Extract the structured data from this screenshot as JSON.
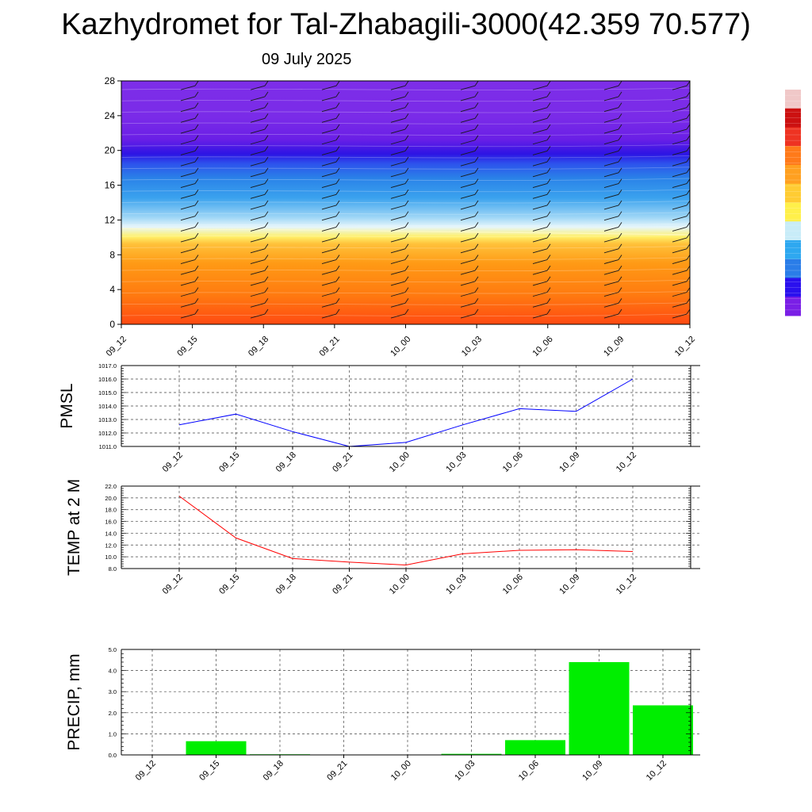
{
  "title": "Kazhydromet for Tal-Zhabagili-3000(42.359 70.577)",
  "date": "09 July 2025",
  "colors": {
    "pmsl_line": "#0000ff",
    "temp_line": "#ff0000",
    "precip_bar": "#00ee00",
    "colorbar": [
      "#7a1fe6",
      "#2a10ee",
      "#2a7de8",
      "#2ea8f0",
      "#c8ecf8",
      "#fff04a",
      "#ffcc33",
      "#ffa020",
      "#ff7a1a",
      "#ee3322",
      "#cc1111",
      "#f0c8c8"
    ]
  },
  "chart_data": [
    {
      "id": "cross-section",
      "type": "heatmap",
      "categories": [
        "09_12",
        "09_15",
        "09_18",
        "09_21",
        "10_00",
        "10_03",
        "10_06",
        "10_09",
        "10_12"
      ],
      "yticks": [
        0,
        4,
        8,
        12,
        16,
        20,
        24,
        28
      ],
      "ylim": [
        0,
        28
      ],
      "xlabel": "",
      "ylabel": "",
      "colorbar": "vertical, right side, unlabeled",
      "freezing_level_approx": [
        11.0,
        10.9,
        10.9,
        10.8,
        10.7,
        10.6,
        10.5,
        10.4,
        10.3
      ],
      "wind_barbs": true
    },
    {
      "id": "pmsl",
      "type": "line",
      "categories": [
        "09_12",
        "09_15",
        "09_18",
        "09_21",
        "10_00",
        "10_03",
        "10_06",
        "10_09",
        "10_12"
      ],
      "ylabel": "PMSL",
      "ylim": [
        1011.0,
        1017.0
      ],
      "yticks": [
        "1011.0",
        "1012.0",
        "1013.0",
        "1014.0",
        "1015.0",
        "1016.0",
        "1017.0"
      ],
      "series": [
        {
          "values": [
            1012.6,
            1013.4,
            1012.1,
            1011.0,
            1011.3,
            1012.6,
            1013.8,
            1013.6,
            1016.0
          ]
        }
      ],
      "grid": true
    },
    {
      "id": "temp",
      "type": "line",
      "categories": [
        "09_12",
        "09_15",
        "09_18",
        "09_21",
        "10_00",
        "10_03",
        "10_06",
        "10_09",
        "10_12"
      ],
      "ylabel": "TEMP at 2 M",
      "ylim": [
        8.0,
        22.0
      ],
      "yticks": [
        "8.0",
        "10.0",
        "12.0",
        "14.0",
        "16.0",
        "18.0",
        "20.0",
        "22.0"
      ],
      "series": [
        {
          "values": [
            20.3,
            13.2,
            9.7,
            9.1,
            8.6,
            10.5,
            11.1,
            11.2,
            10.9
          ]
        }
      ],
      "grid": true
    },
    {
      "id": "precip",
      "type": "bar",
      "categories": [
        "09_12",
        "09_15",
        "09_18",
        "09_21",
        "10_00",
        "10_03",
        "10_06",
        "10_09",
        "10_12"
      ],
      "ylabel": "PRECIP, mm",
      "ylim": [
        0.0,
        5.0
      ],
      "yticks": [
        "0.0",
        "1.0",
        "2.0",
        "3.0",
        "4.0",
        "5.0"
      ],
      "series": [
        {
          "values": [
            0.0,
            0.65,
            0.03,
            0.0,
            0.0,
            0.05,
            0.7,
            4.4,
            2.35
          ]
        }
      ],
      "grid": true
    }
  ]
}
